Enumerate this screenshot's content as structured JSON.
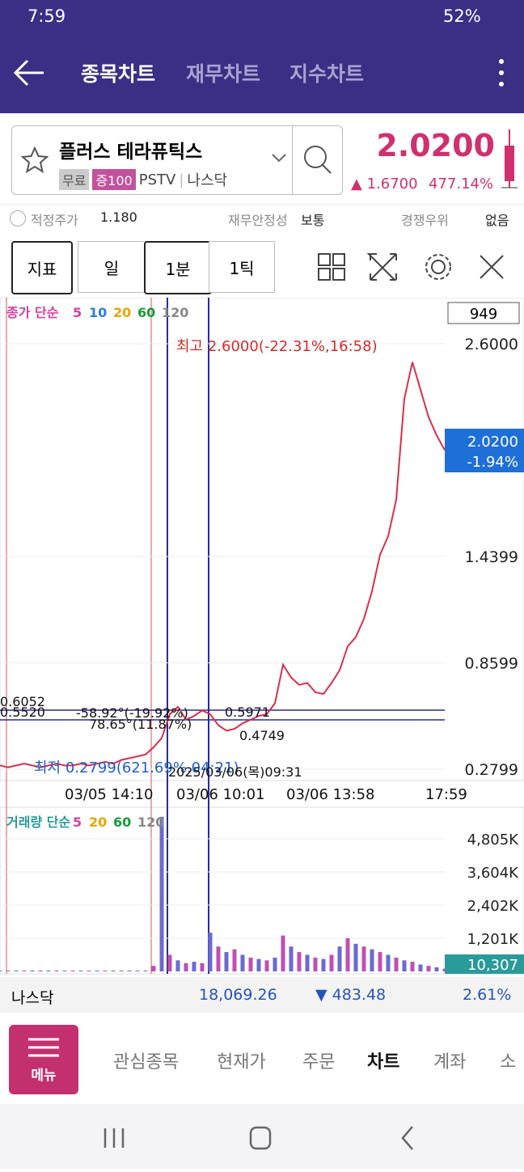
{
  "status_bar": {
    "time": "7:59",
    "battery": "52%"
  },
  "header": {
    "tabs": [
      "종목차트",
      "재무차트",
      "지수차트"
    ]
  },
  "stock": {
    "name": "플러스 테라퓨틱스",
    "tags": [
      "무료",
      "증100"
    ],
    "ticker": "PSTV",
    "market": "나스닥",
    "price": "2.0200",
    "change": "▲ 1.6700",
    "change_pct": "477.14%"
  },
  "info_row": {
    "items": [
      {
        "label": "적정주가",
        "value": "1.180"
      },
      {
        "label": "재무안정성",
        "value": "보통"
      },
      {
        "label": "경쟁우위",
        "value": "없음"
      }
    ]
  },
  "toolbar": {
    "buttons": [
      "지표",
      "일",
      "1분",
      "1틱"
    ]
  },
  "chart": {
    "count_box": "949",
    "ma_legend": {
      "label": "종가 단순",
      "periods": [
        5,
        10,
        20,
        60,
        120
      ],
      "colors": [
        "#d63fa0",
        "#2a7fe0",
        "#e8a500",
        "#1a9a3a",
        "#888888"
      ]
    },
    "high_label": "최고 2.6000(-22.31%,16:58)",
    "low_label": "최저 0.2799(621.69%,04:21)",
    "current_box": [
      "2.0200",
      "-1.94%"
    ],
    "price_ticks": [
      {
        "value": 2.6,
        "label": "2.6000"
      },
      {
        "value": 1.4399,
        "label": "1.4399"
      },
      {
        "value": 0.8599,
        "label": "0.8599"
      },
      {
        "value": 0.2799,
        "label": "0.2799"
      }
    ],
    "annotations": [
      "0.6052",
      "0.5520",
      "-58.92°(-19.92%)",
      "78.65°(11.87%)",
      "0.5971",
      "0.4749",
      "2025/03/06(목)09:31"
    ],
    "time_labels": [
      "03/05 14:10",
      "03/06 10:01",
      "03/06 13:58",
      "17:59"
    ],
    "close": [
      0.3,
      0.29,
      0.3,
      0.31,
      0.3,
      0.29,
      0.3,
      0.31,
      0.3,
      0.3,
      0.31,
      0.3,
      0.31,
      0.32,
      0.31,
      0.33,
      0.34,
      0.35,
      0.36,
      0.4,
      0.45,
      0.58,
      0.62,
      0.55,
      0.57,
      0.6,
      0.58,
      0.52,
      0.49,
      0.5,
      0.53,
      0.55,
      0.57,
      0.58,
      0.64,
      0.85,
      0.78,
      0.74,
      0.75,
      0.7,
      0.69,
      0.75,
      0.82,
      0.95,
      1.0,
      1.1,
      1.25,
      1.45,
      1.55,
      1.75,
      2.3,
      2.5,
      2.35,
      2.2,
      2.1,
      2.02
    ],
    "volume_legend": {
      "label": "거래량 단순",
      "periods": [
        5,
        20,
        60,
        120
      ],
      "colors": [
        "#d63fa0",
        "#e8a500",
        "#1a9a3a",
        "#888888"
      ]
    },
    "volume_ticks": [
      {
        "value": 4805,
        "label": "4,805K"
      },
      {
        "value": 3604,
        "label": "3,604K"
      },
      {
        "value": 2402,
        "label": "2,402K"
      },
      {
        "value": 1201,
        "label": "1,201K"
      }
    ],
    "volume_box": "10,307",
    "volume": [
      30,
      30,
      30,
      30,
      30,
      30,
      30,
      30,
      30,
      30,
      30,
      30,
      30,
      30,
      30,
      30,
      30,
      30,
      30,
      200,
      5600,
      600,
      400,
      300,
      350,
      300,
      1400,
      900,
      700,
      800,
      600,
      500,
      450,
      400,
      500,
      1300,
      900,
      700,
      600,
      500,
      450,
      600,
      900,
      1200,
      1000,
      900,
      800,
      700,
      600,
      500,
      400,
      350,
      250,
      200,
      150,
      100
    ]
  },
  "index_bar": {
    "name": "나스닥",
    "value": "18,069.26",
    "change": "▼ 483.48",
    "change_pct": "2.61%"
  },
  "bottom_nav": {
    "menu": "메뉴",
    "tabs": [
      "관심종목",
      "현재가",
      "주문",
      "차트",
      "계좌",
      "소"
    ]
  }
}
